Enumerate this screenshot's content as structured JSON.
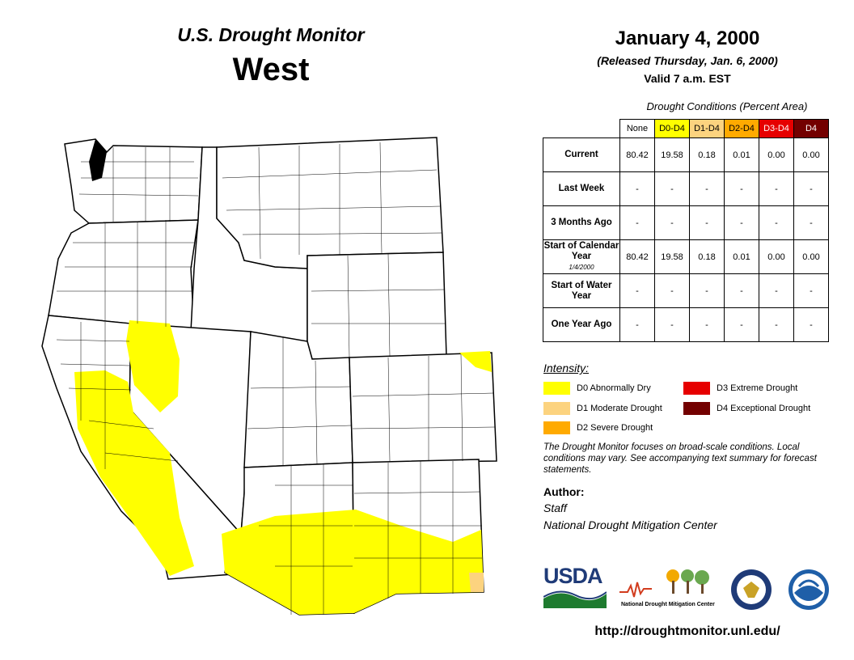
{
  "header": {
    "brand": "U.S. Drought Monitor",
    "region": "West",
    "date": "January 4, 2000",
    "released": "(Released Thursday, Jan. 6, 2000)",
    "valid": "Valid 7 a.m. EST"
  },
  "table": {
    "caption": "Drought Conditions (Percent Area)",
    "columns": [
      {
        "label": "None",
        "color": "#ffffff",
        "text_color": "#000000"
      },
      {
        "label": "D0-D4",
        "color": "#ffff00",
        "text_color": "#000000"
      },
      {
        "label": "D1-D4",
        "color": "#fcd37f",
        "text_color": "#000000"
      },
      {
        "label": "D2-D4",
        "color": "#ffaa00",
        "text_color": "#000000"
      },
      {
        "label": "D3-D4",
        "color": "#e60000",
        "text_color": "#ffffff"
      },
      {
        "label": "D4",
        "color": "#730000",
        "text_color": "#ffffff"
      }
    ],
    "rows": [
      {
        "label": "Current",
        "sublabel": "",
        "values": [
          "80.42",
          "19.58",
          "0.18",
          "0.01",
          "0.00",
          "0.00"
        ]
      },
      {
        "label": "Last Week",
        "sublabel": "",
        "values": [
          "-",
          "-",
          "-",
          "-",
          "-",
          "-"
        ]
      },
      {
        "label": "3 Months Ago",
        "sublabel": "",
        "values": [
          "-",
          "-",
          "-",
          "-",
          "-",
          "-"
        ]
      },
      {
        "label": "Start of Calendar Year",
        "sublabel": "1/4/2000",
        "values": [
          "80.42",
          "19.58",
          "0.18",
          "0.01",
          "0.00",
          "0.00"
        ]
      },
      {
        "label": "Start of Water Year",
        "sublabel": "",
        "values": [
          "-",
          "-",
          "-",
          "-",
          "-",
          "-"
        ]
      },
      {
        "label": "One Year Ago",
        "sublabel": "",
        "values": [
          "-",
          "-",
          "-",
          "-",
          "-",
          "-"
        ]
      }
    ]
  },
  "legend": {
    "title": "Intensity:",
    "items": [
      {
        "label": "D0 Abnormally Dry",
        "color": "#ffff00"
      },
      {
        "label": "D1 Moderate Drought",
        "color": "#fcd37f"
      },
      {
        "label": "D2 Severe Drought",
        "color": "#ffaa00"
      },
      {
        "label": "D3 Extreme Drought",
        "color": "#e60000"
      },
      {
        "label": "D4 Exceptional Drought",
        "color": "#730000"
      }
    ]
  },
  "note": "The Drought Monitor focuses on broad-scale conditions. Local conditions may vary. See accompanying text summary for forecast statements.",
  "author": {
    "heading": "Author:",
    "name": "Staff",
    "organization": "National Drought Mitigation Center"
  },
  "logos": {
    "usda": "USDA",
    "ndmc": "National Drought Mitigation Center",
    "doc_icon": "commerce-seal-icon",
    "noaa_icon": "noaa-logo-icon",
    "noaa_text": "NOAA"
  },
  "url": "http://droughtmonitor.unl.edu/"
}
